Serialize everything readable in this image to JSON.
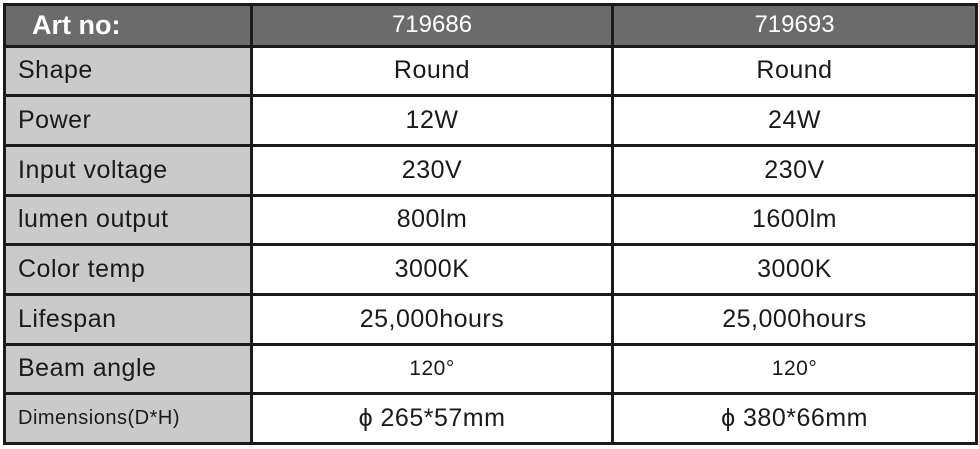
{
  "header": {
    "label": "Art no:",
    "columns": [
      "719686",
      "719693"
    ]
  },
  "rows": [
    {
      "label": "Shape",
      "values": [
        "Round",
        "Round"
      ]
    },
    {
      "label": "Power",
      "values": [
        "12W",
        "24W"
      ]
    },
    {
      "label": "Input voltage",
      "values": [
        "230V",
        "230V"
      ]
    },
    {
      "label": "lumen output",
      "values": [
        "800lm",
        "1600lm"
      ]
    },
    {
      "label": "Color temp",
      "values": [
        "3000K",
        "3000K"
      ]
    },
    {
      "label": "Lifespan",
      "values": [
        "25,000hours",
        "25,000hours"
      ]
    },
    {
      "label": "Beam angle",
      "values": [
        "120°",
        "120°"
      ]
    },
    {
      "label": "Dimensions(D*H)",
      "values": [
        "ϕ 265*57mm",
        "ϕ 380*66mm"
      ]
    }
  ],
  "colors": {
    "header_bg": "#6b6b6b",
    "label_bg": "#cacaca",
    "border": "#1a1a1a"
  }
}
